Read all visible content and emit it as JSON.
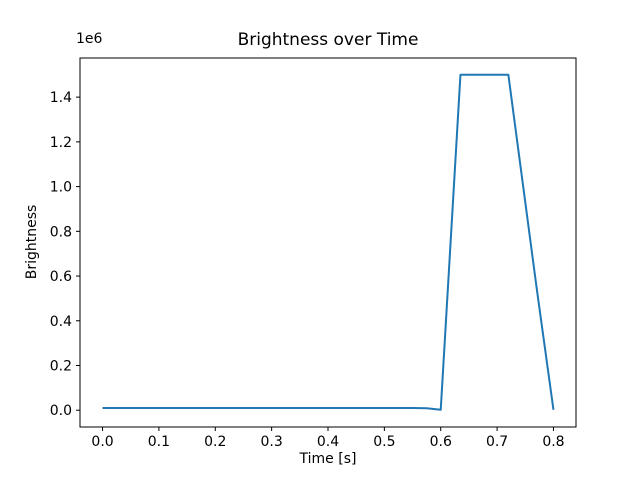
{
  "window": {
    "background": "#ffffff"
  },
  "chart_data": {
    "type": "line",
    "title": "Brightness over Time",
    "xlabel": "Time [s]",
    "ylabel": "Brightness",
    "offset_text": "1e6",
    "line_color": "#1f77b4",
    "axis_color": "#000000",
    "grid": false,
    "legend": "none",
    "xlim": [
      -0.04,
      0.84
    ],
    "ylim": [
      -75000,
      1575000
    ],
    "xticks": [
      0.0,
      0.1,
      0.2,
      0.3,
      0.4,
      0.5,
      0.6,
      0.7,
      0.8
    ],
    "xtick_labels": [
      "0.0",
      "0.1",
      "0.2",
      "0.3",
      "0.4",
      "0.5",
      "0.6",
      "0.7",
      "0.8"
    ],
    "yticks": [
      0,
      200000,
      400000,
      600000,
      800000,
      1000000,
      1200000,
      1400000
    ],
    "ytick_labels": [
      "0.0",
      "0.2",
      "0.4",
      "0.6",
      "0.8",
      "1.0",
      "1.2",
      "1.4"
    ],
    "series": [
      {
        "name": "brightness",
        "points": [
          [
            0.0,
            10000
          ],
          [
            0.05,
            10000
          ],
          [
            0.1,
            10000
          ],
          [
            0.15,
            10000
          ],
          [
            0.2,
            10000
          ],
          [
            0.25,
            10000
          ],
          [
            0.3,
            10000
          ],
          [
            0.35,
            10000
          ],
          [
            0.4,
            10000
          ],
          [
            0.45,
            10000
          ],
          [
            0.5,
            10000
          ],
          [
            0.55,
            10000
          ],
          [
            0.575,
            9000
          ],
          [
            0.6,
            2000
          ],
          [
            0.635,
            1500000
          ],
          [
            0.675,
            1500000
          ],
          [
            0.72,
            1500000
          ],
          [
            0.77,
            550000
          ],
          [
            0.8,
            2000
          ]
        ]
      }
    ]
  }
}
